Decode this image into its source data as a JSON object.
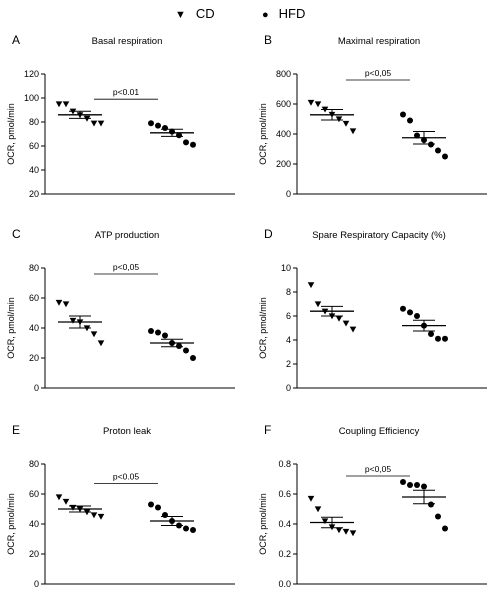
{
  "legend": {
    "items": [
      {
        "marker": "▼",
        "label": "CD"
      },
      {
        "marker": "●",
        "label": "HFD"
      }
    ]
  },
  "chart_data": [
    {
      "type": "scatter",
      "panel_letter": "A",
      "title": "Basal respiration",
      "ylabel": "OCR, pmol/min",
      "xlabel": "",
      "ylim": [
        20,
        120
      ],
      "yticks": [
        20,
        40,
        60,
        80,
        100,
        120
      ],
      "groups": [
        {
          "name": "CD",
          "marker": "triangle-down",
          "values": [
            95,
            95,
            89,
            86,
            83,
            79,
            79
          ],
          "mean": 86,
          "sem": 3
        },
        {
          "name": "HFD",
          "marker": "circle",
          "values": [
            79,
            77,
            75,
            72,
            69,
            63,
            61
          ],
          "mean": 71,
          "sem": 3
        }
      ],
      "annotation": {
        "text": "p<0.01",
        "value": 99
      }
    },
    {
      "type": "scatter",
      "panel_letter": "B",
      "title": "Maximal respiration",
      "ylabel": "OCR, pmol/min",
      "xlabel": "",
      "ylim": [
        0,
        800
      ],
      "yticks": [
        0,
        200,
        400,
        600,
        800
      ],
      "groups": [
        {
          "name": "CD",
          "marker": "triangle-down",
          "values": [
            610,
            600,
            565,
            530,
            500,
            470,
            420
          ],
          "mean": 528,
          "sem": 35
        },
        {
          "name": "HFD",
          "marker": "circle",
          "values": [
            530,
            490,
            390,
            360,
            330,
            290,
            250
          ],
          "mean": 375,
          "sem": 42
        }
      ],
      "annotation": {
        "text": "p<0,05",
        "value": 760
      }
    },
    {
      "type": "scatter",
      "panel_letter": "C",
      "title": "ATP production",
      "ylabel": "OCR, pmol/min",
      "xlabel": "",
      "ylim": [
        0,
        80
      ],
      "yticks": [
        0,
        20,
        40,
        60,
        80
      ],
      "groups": [
        {
          "name": "CD",
          "marker": "triangle-down",
          "values": [
            57,
            56,
            45,
            44,
            40,
            36,
            30
          ],
          "mean": 44,
          "sem": 4
        },
        {
          "name": "HFD",
          "marker": "circle",
          "values": [
            38,
            37,
            35,
            30,
            28,
            25,
            20
          ],
          "mean": 30,
          "sem": 2.5
        }
      ],
      "annotation": {
        "text": "p<0,05",
        "value": 76
      }
    },
    {
      "type": "scatter",
      "panel_letter": "D",
      "title": "Spare Respiratory Capacity (%)",
      "ylabel": "OCR, pmol/min",
      "xlabel": "",
      "ylim": [
        0,
        10
      ],
      "yticks": [
        0,
        2,
        4,
        6,
        8,
        10
      ],
      "groups": [
        {
          "name": "CD",
          "marker": "triangle-down",
          "values": [
            8.6,
            7.0,
            6.4,
            6.0,
            5.8,
            5.4,
            4.9
          ],
          "mean": 6.4,
          "sem": 0.4
        },
        {
          "name": "HFD",
          "marker": "circle",
          "values": [
            6.6,
            6.3,
            6.0,
            5.2,
            4.5,
            4.1,
            4.1
          ],
          "mean": 5.2,
          "sem": 0.45
        }
      ],
      "annotation": null
    },
    {
      "type": "scatter",
      "panel_letter": "E",
      "title": "Proton leak",
      "ylabel": "OCR, pmol/min",
      "xlabel": "",
      "ylim": [
        0,
        80
      ],
      "yticks": [
        0,
        20,
        40,
        60,
        80
      ],
      "groups": [
        {
          "name": "CD",
          "marker": "triangle-down",
          "values": [
            58,
            55,
            51,
            50,
            48,
            46,
            45
          ],
          "mean": 50,
          "sem": 2
        },
        {
          "name": "HFD",
          "marker": "circle",
          "values": [
            53,
            51,
            46,
            42,
            39,
            37,
            36
          ],
          "mean": 42,
          "sem": 3
        }
      ],
      "annotation": {
        "text": "p<0.05",
        "value": 67
      }
    },
    {
      "type": "scatter",
      "panel_letter": "F",
      "title": "Coupling Efficiency",
      "ylabel": "OCR, pmol/min",
      "xlabel": "",
      "ylim": [
        0.0,
        0.8
      ],
      "yticks": [
        0.0,
        0.2,
        0.4,
        0.6,
        0.8
      ],
      "groups": [
        {
          "name": "CD",
          "marker": "triangle-down",
          "values": [
            0.57,
            0.5,
            0.42,
            0.38,
            0.36,
            0.35,
            0.34
          ],
          "mean": 0.41,
          "sem": 0.035
        },
        {
          "name": "HFD",
          "marker": "circle",
          "values": [
            0.68,
            0.66,
            0.66,
            0.65,
            0.53,
            0.45,
            0.37
          ],
          "mean": 0.58,
          "sem": 0.045
        }
      ],
      "annotation": {
        "text": "p<0,05",
        "value": 0.72
      }
    }
  ]
}
